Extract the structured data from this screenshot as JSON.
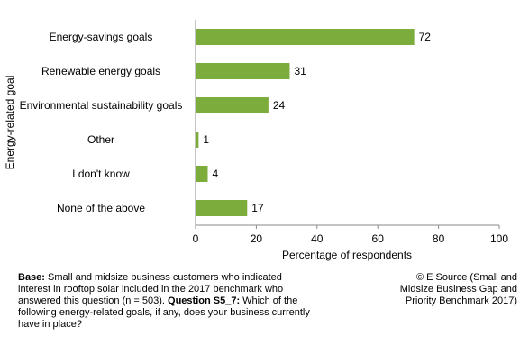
{
  "chart_data": {
    "type": "barh",
    "y_axis_label": "Energy-related goal",
    "x_axis_label": "Percentage of respondents",
    "categories": [
      "Energy-savings goals",
      "Renewable energy goals",
      "Environmental sustainability goals",
      "Other",
      "I don't know",
      "None of the above"
    ],
    "values": [
      72,
      31,
      24,
      1,
      4,
      17
    ],
    "color": "#7cac3c",
    "xlim": [
      0,
      100
    ],
    "xticks": [
      0,
      20,
      40,
      60,
      80,
      100
    ],
    "grid": false
  },
  "footer": {
    "base_label": "Base:",
    "base_text": "Small and midsize business customers who indicated interest in rooftop solar included in the 2017 benchmark who answered this question (n = 503).",
    "question_label": "Question S5_7:",
    "question_text": "Which of the following energy-related goals, if any, does your business currently have in place?",
    "source": "© E Source (Small and Midsize Business Gap and Priority Benchmark 2017)"
  }
}
